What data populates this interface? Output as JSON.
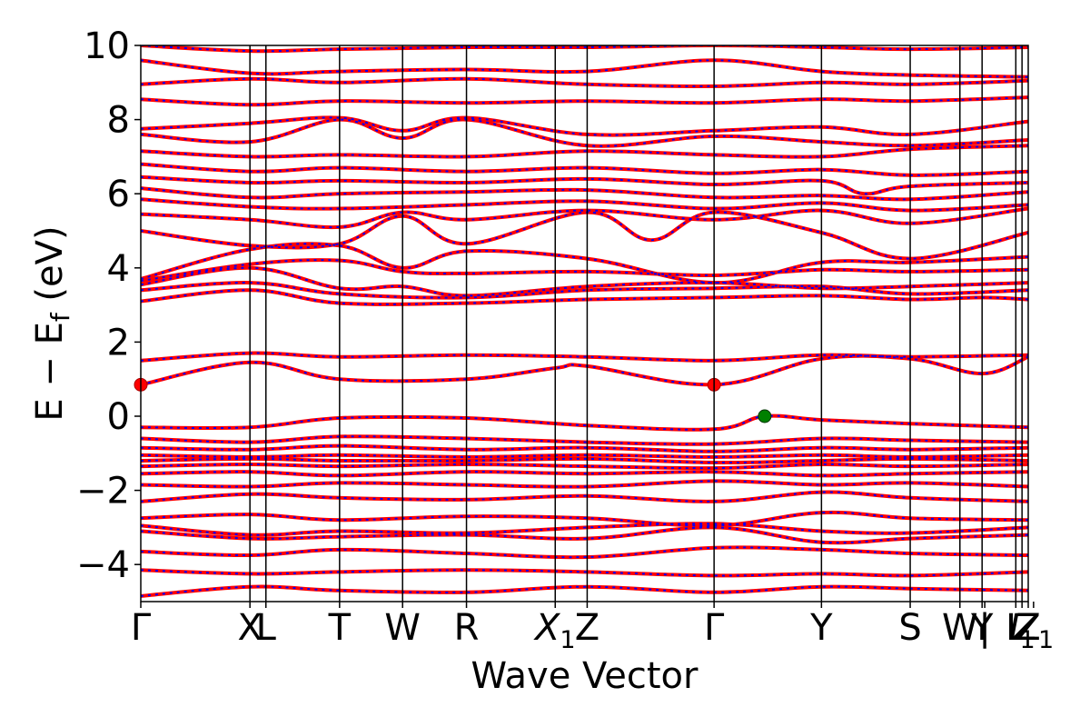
{
  "chart_data": {
    "type": "line",
    "title": "",
    "xlabel": "Wave Vector",
    "ylabel": "E − E_f (eV)",
    "ylabel_main": "E − E",
    "ylabel_sub": "f",
    "ylabel_unit": " (eV)",
    "ylim": [
      -5,
      10
    ],
    "yticks": [
      -4,
      -2,
      0,
      2,
      4,
      6,
      8,
      10
    ],
    "ytick_labels": [
      "−4",
      "−2",
      "0",
      "2",
      "4",
      "6",
      "8",
      "10"
    ],
    "xlim": [
      0,
      100
    ],
    "high_symmetry_points": [
      {
        "label": "Γ",
        "x": 0
      },
      {
        "label": "X",
        "x": 12.3
      },
      {
        "label": "L",
        "x": 14.1
      },
      {
        "label": "T",
        "x": 22.4
      },
      {
        "label": "W",
        "x": 29.5
      },
      {
        "label": "R",
        "x": 36.7
      },
      {
        "label": "X",
        "sub": "1",
        "x": 46.7
      },
      {
        "label": "Z",
        "x": 50.3
      },
      {
        "label": "Γ",
        "x": 64.6
      },
      {
        "label": "Y",
        "x": 76.7
      },
      {
        "label": "S",
        "x": 86.7
      },
      {
        "label": "W",
        "x": 92.3
      },
      {
        "label": "Y",
        "x": 94.8
      },
      {
        "label": "|",
        "x": 95.1
      },
      {
        "label": "L",
        "x": 98.6
      },
      {
        "label": "I",
        "sub": "1",
        "x": 99.3
      },
      {
        "label": "Z",
        "x": 100
      },
      {
        "label": "Z",
        "sub": "1",
        "x": 100.6
      }
    ],
    "series": [
      {
        "color": "#ff0000",
        "style": "solid"
      },
      {
        "color": "#0000ff",
        "style": "dotted"
      }
    ],
    "markers": [
      {
        "x": 0,
        "y": 0.85,
        "color": "#ff0000"
      },
      {
        "x": 64.6,
        "y": 0.85,
        "color": "#ff0000"
      },
      {
        "x": 70.3,
        "y": 0.0,
        "color": "#008000"
      }
    ],
    "bands": [
      {
        "x": [
          0,
          12.3,
          22.4,
          36.7,
          50.3,
          64.6,
          76.7,
          86.7,
          100
        ],
        "y": [
          -4.85,
          -4.6,
          -4.7,
          -4.75,
          -4.6,
          -4.75,
          -4.6,
          -4.65,
          -4.7
        ]
      },
      {
        "x": [
          0,
          12.3,
          22.4,
          36.7,
          50.3,
          64.6,
          76.7,
          86.7,
          100
        ],
        "y": [
          -4.15,
          -4.25,
          -4.2,
          -4.15,
          -4.2,
          -4.3,
          -4.25,
          -4.3,
          -4.2
        ]
      },
      {
        "x": [
          0,
          12.3,
          22.4,
          36.7,
          50.3,
          64.6,
          76.7,
          86.7,
          100
        ],
        "y": [
          -3.65,
          -3.75,
          -3.6,
          -3.7,
          -3.8,
          -3.55,
          -3.6,
          -3.7,
          -3.75
        ]
      },
      {
        "x": [
          0,
          12.3,
          22.4,
          36.7,
          50.3,
          64.6,
          76.7,
          86.7,
          100
        ],
        "y": [
          -3.1,
          -3.3,
          -3.25,
          -3.2,
          -3.3,
          -3.0,
          -3.4,
          -3.3,
          -3.2
        ]
      },
      {
        "x": [
          0,
          12.3,
          22.4,
          36.7,
          50.3,
          64.6,
          76.7,
          86.7,
          100
        ],
        "y": [
          -2.95,
          -3.2,
          -3.1,
          -3.15,
          -3.0,
          -2.9,
          -3.1,
          -3.15,
          -3.0
        ]
      },
      {
        "x": [
          0,
          12.3,
          22.4,
          36.7,
          50.3,
          64.6,
          76.7,
          86.7,
          100
        ],
        "y": [
          -2.75,
          -2.65,
          -2.8,
          -2.7,
          -2.75,
          -2.95,
          -2.6,
          -2.75,
          -2.8
        ]
      },
      {
        "x": [
          0,
          12.3,
          22.4,
          36.7,
          50.3,
          64.6,
          76.7,
          86.7,
          100
        ],
        "y": [
          -2.3,
          -2.1,
          -2.2,
          -2.25,
          -2.15,
          -2.3,
          -2.05,
          -2.2,
          -2.3
        ]
      },
      {
        "x": [
          0,
          12.3,
          22.4,
          36.7,
          50.3,
          64.6,
          76.7,
          86.7,
          100
        ],
        "y": [
          -1.85,
          -1.9,
          -1.8,
          -1.85,
          -1.9,
          -1.75,
          -1.85,
          -1.8,
          -1.9
        ]
      },
      {
        "x": [
          0,
          12.3,
          22.4,
          36.7,
          50.3,
          64.6,
          76.7,
          86.7,
          100
        ],
        "y": [
          -1.55,
          -1.5,
          -1.6,
          -1.5,
          -1.55,
          -1.5,
          -1.6,
          -1.55,
          -1.5
        ]
      },
      {
        "x": [
          0,
          12.3,
          22.4,
          36.7,
          50.3,
          64.6,
          76.7,
          86.7,
          100
        ],
        "y": [
          -1.35,
          -1.3,
          -1.35,
          -1.3,
          -1.35,
          -1.4,
          -1.3,
          -1.35,
          -1.3
        ]
      },
      {
        "x": [
          0,
          12.3,
          22.4,
          36.7,
          50.3,
          64.6,
          76.7,
          86.7,
          100
        ],
        "y": [
          -1.2,
          -1.15,
          -1.2,
          -1.2,
          -1.15,
          -1.25,
          -1.2,
          -1.15,
          -1.2
        ]
      },
      {
        "x": [
          0,
          12.3,
          22.4,
          36.7,
          50.3,
          64.6,
          76.7,
          86.7,
          100
        ],
        "y": [
          -1.05,
          -1.1,
          -1.05,
          -1.1,
          -1.05,
          -1.1,
          -1.05,
          -1.1,
          -1.05
        ]
      },
      {
        "x": [
          0,
          12.3,
          22.4,
          36.7,
          50.3,
          64.6,
          76.7,
          86.7,
          100
        ],
        "y": [
          -0.85,
          -0.9,
          -0.8,
          -0.9,
          -0.85,
          -0.95,
          -0.85,
          -0.9,
          -0.85
        ]
      },
      {
        "x": [
          0,
          12.3,
          22.4,
          36.7,
          50.3,
          64.6,
          76.7,
          86.7,
          100
        ],
        "y": [
          -0.6,
          -0.7,
          -0.55,
          -0.6,
          -0.7,
          -0.75,
          -0.6,
          -0.65,
          -0.7
        ]
      },
      {
        "x": [
          0,
          12.3,
          22.4,
          36.7,
          50.3,
          64.6,
          70.3,
          76.7,
          86.7,
          100
        ],
        "y": [
          -0.3,
          -0.3,
          -0.05,
          -0.05,
          -0.25,
          -0.35,
          0.0,
          -0.1,
          -0.2,
          -0.3
        ]
      },
      {
        "x": [
          0,
          12.3,
          22.4,
          36.7,
          46.7,
          50.3,
          64.6,
          76.7,
          86.7,
          94.8,
          100
        ],
        "y": [
          0.85,
          1.45,
          1.0,
          1.0,
          1.3,
          1.35,
          0.85,
          1.55,
          1.55,
          1.15,
          1.6
        ]
      },
      {
        "x": [
          0,
          12.3,
          22.4,
          36.7,
          50.3,
          64.6,
          76.7,
          86.7,
          100
        ],
        "y": [
          1.5,
          1.7,
          1.6,
          1.65,
          1.6,
          1.5,
          1.65,
          1.6,
          1.65
        ]
      },
      {
        "x": [
          0,
          12.3,
          22.4,
          36.7,
          50.3,
          64.6,
          76.7,
          86.7,
          94.8,
          100
        ],
        "y": [
          3.1,
          3.4,
          3.05,
          3.05,
          3.15,
          3.2,
          3.25,
          3.15,
          3.2,
          3.15
        ]
      },
      {
        "x": [
          0,
          12.3,
          22.4,
          36.7,
          50.3,
          64.6,
          76.7,
          86.7,
          100
        ],
        "y": [
          3.4,
          3.6,
          3.3,
          3.2,
          3.4,
          3.45,
          3.5,
          3.3,
          3.4
        ]
      },
      {
        "x": [
          0,
          12.3,
          22.4,
          29.5,
          36.7,
          50.3,
          64.6,
          76.7,
          86.7,
          100
        ],
        "y": [
          3.55,
          4.0,
          3.45,
          3.5,
          3.25,
          3.5,
          3.6,
          3.45,
          3.5,
          3.6
        ]
      },
      {
        "x": [
          0,
          12.3,
          22.4,
          29.5,
          36.7,
          50.3,
          64.6,
          76.7,
          86.7,
          100
        ],
        "y": [
          3.65,
          4.1,
          4.2,
          3.9,
          3.85,
          3.9,
          3.8,
          3.95,
          3.9,
          3.95
        ]
      },
      {
        "x": [
          0,
          12.3,
          22.4,
          29.5,
          36.7,
          50.3,
          64.6,
          76.7,
          86.7,
          100
        ],
        "y": [
          3.7,
          4.5,
          4.6,
          4.0,
          4.45,
          4.25,
          3.6,
          4.15,
          4.15,
          4.3
        ]
      },
      {
        "x": [
          0,
          12.3,
          22.4,
          29.5,
          36.7,
          50.3,
          57.5,
          64.6,
          76.7,
          86.7,
          100
        ],
        "y": [
          5.0,
          4.6,
          4.65,
          5.4,
          4.65,
          5.5,
          4.75,
          5.5,
          4.95,
          4.25,
          4.95
        ]
      },
      {
        "x": [
          0,
          12.3,
          22.4,
          29.5,
          36.7,
          50.3,
          64.6,
          76.7,
          86.7,
          100
        ],
        "y": [
          5.45,
          5.3,
          5.1,
          5.5,
          5.3,
          5.55,
          5.3,
          5.55,
          5.2,
          5.6
        ]
      },
      {
        "x": [
          0,
          12.3,
          22.4,
          36.7,
          50.3,
          64.6,
          76.7,
          86.7,
          100
        ],
        "y": [
          5.85,
          5.65,
          5.6,
          5.7,
          5.8,
          5.6,
          5.75,
          5.55,
          5.7
        ]
      },
      {
        "x": [
          0,
          12.3,
          22.4,
          36.7,
          50.3,
          64.6,
          76.7,
          86.7,
          100
        ],
        "y": [
          6.15,
          5.9,
          6.0,
          6.05,
          6.1,
          5.9,
          5.95,
          5.85,
          6.05
        ]
      },
      {
        "x": [
          0,
          12.3,
          22.4,
          36.7,
          50.3,
          64.6,
          76.7,
          81.5,
          86.7,
          100
        ],
        "y": [
          6.45,
          6.3,
          6.35,
          6.3,
          6.4,
          6.25,
          6.35,
          6.0,
          6.2,
          6.3
        ]
      },
      {
        "x": [
          0,
          12.3,
          22.4,
          36.7,
          50.3,
          64.6,
          76.7,
          86.7,
          100
        ],
        "y": [
          6.8,
          6.6,
          6.7,
          6.6,
          6.7,
          6.55,
          6.65,
          6.5,
          6.6
        ]
      },
      {
        "x": [
          0,
          12.3,
          22.4,
          36.7,
          50.3,
          64.6,
          76.7,
          86.7,
          100
        ],
        "y": [
          7.15,
          7.0,
          7.05,
          7.0,
          7.15,
          7.05,
          7.0,
          7.2,
          7.3
        ]
      },
      {
        "x": [
          0,
          12.3,
          22.4,
          29.5,
          36.7,
          50.3,
          64.6,
          76.7,
          86.7,
          100
        ],
        "y": [
          7.6,
          7.4,
          8.0,
          7.5,
          8.0,
          7.3,
          7.55,
          7.4,
          7.3,
          7.45
        ]
      },
      {
        "x": [
          0,
          12.3,
          22.4,
          29.5,
          36.7,
          50.3,
          64.6,
          76.7,
          86.7,
          100
        ],
        "y": [
          7.75,
          7.9,
          8.05,
          7.7,
          8.05,
          7.6,
          7.7,
          7.8,
          7.6,
          7.95
        ]
      },
      {
        "x": [
          0,
          12.3,
          22.4,
          36.7,
          50.3,
          64.6,
          76.7,
          86.7,
          100
        ],
        "y": [
          8.55,
          8.4,
          8.5,
          8.45,
          8.5,
          8.45,
          8.55,
          8.5,
          8.6
        ]
      },
      {
        "x": [
          0,
          12.3,
          22.4,
          36.7,
          50.3,
          64.6,
          76.7,
          86.7,
          100
        ],
        "y": [
          8.95,
          9.1,
          9.0,
          9.1,
          8.95,
          8.9,
          9.0,
          8.95,
          9.05
        ]
      },
      {
        "x": [
          0,
          12.3,
          22.4,
          36.7,
          50.3,
          64.6,
          76.7,
          86.7,
          100
        ],
        "y": [
          9.6,
          9.25,
          9.3,
          9.35,
          9.3,
          9.6,
          9.3,
          9.2,
          9.15
        ]
      },
      {
        "x": [
          0,
          12.3,
          22.4,
          36.7,
          50.3,
          64.6,
          76.7,
          86.7,
          100
        ],
        "y": [
          10.0,
          9.85,
          9.9,
          9.95,
          9.95,
          10.0,
          9.95,
          9.9,
          9.95
        ]
      }
    ]
  }
}
